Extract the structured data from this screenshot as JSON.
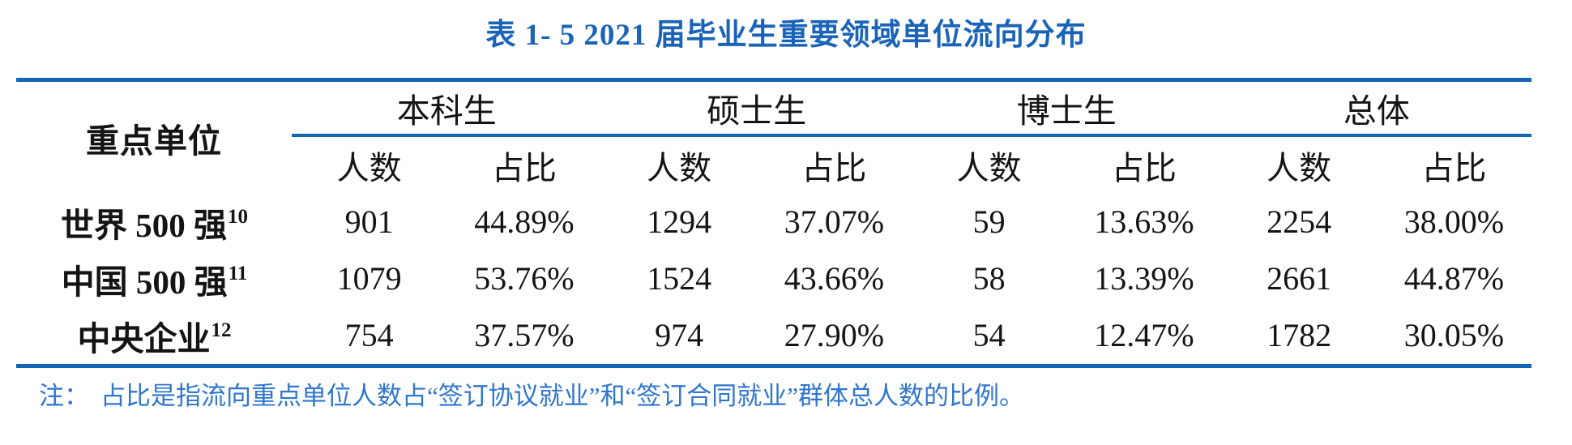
{
  "title": "表 1- 5 2021 届毕业生重要领域单位流向分布",
  "colors": {
    "title_blue": "#1A64B8",
    "line_blue": "#1266B8",
    "note_blue": "#2F76CC",
    "text_black": "#141414"
  },
  "table": {
    "corner_header": "重点单位",
    "groups": [
      {
        "label": "本科生"
      },
      {
        "label": "硕士生"
      },
      {
        "label": "博士生"
      },
      {
        "label": "总体"
      }
    ],
    "sub": [
      "人数",
      "占比"
    ],
    "rows": [
      {
        "label": "世界 500 强",
        "footnote": "10",
        "values": [
          "901",
          "44.89%",
          "1294",
          "37.07%",
          "59",
          "13.63%",
          "2254",
          "38.00%"
        ]
      },
      {
        "label": "中国 500 强",
        "footnote": "11",
        "values": [
          "1079",
          "53.76%",
          "1524",
          "43.66%",
          "58",
          "13.39%",
          "2661",
          "44.87%"
        ]
      },
      {
        "label": "中央企业",
        "footnote": "12",
        "values": [
          "754",
          "37.57%",
          "974",
          "27.90%",
          "54",
          "12.47%",
          "1782",
          "30.05%"
        ]
      }
    ]
  },
  "note": {
    "prefix": "注：",
    "text": "占比是指流向重点单位人数占“签订协议就业”和“签订合同就业”群体总人数的比例。"
  }
}
